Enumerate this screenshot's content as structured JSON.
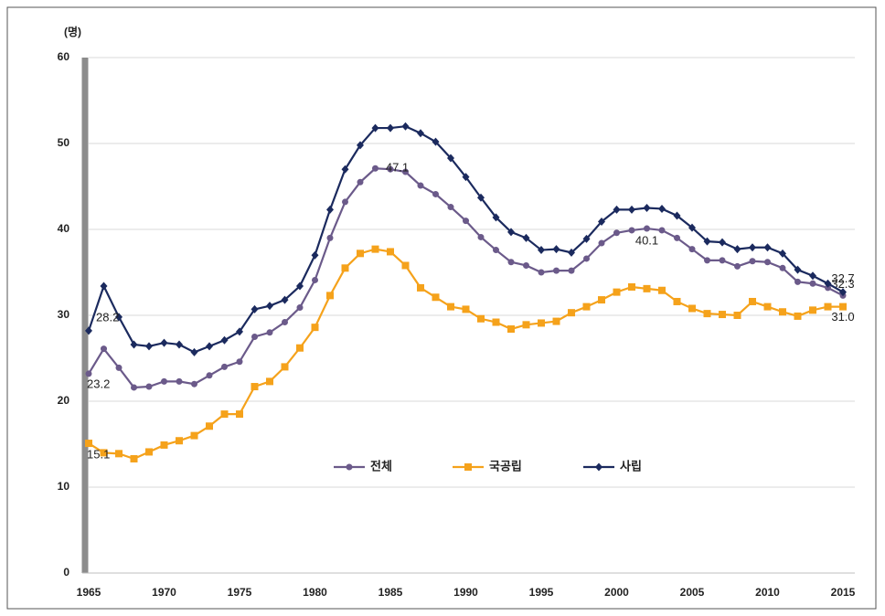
{
  "chart_data": {
    "type": "line",
    "y_label": "(명)",
    "x": [
      1965,
      1966,
      1967,
      1968,
      1969,
      1970,
      1971,
      1972,
      1973,
      1974,
      1975,
      1976,
      1977,
      1978,
      1979,
      1980,
      1981,
      1982,
      1983,
      1984,
      1985,
      1986,
      1987,
      1988,
      1989,
      1990,
      1991,
      1992,
      1993,
      1994,
      1995,
      1996,
      1997,
      1998,
      1999,
      2000,
      2001,
      2002,
      2003,
      2004,
      2005,
      2006,
      2007,
      2008,
      2009,
      2010,
      2011,
      2012,
      2013,
      2014,
      2015
    ],
    "xlim": [
      1965,
      2015
    ],
    "xticks": [
      1965,
      1970,
      1975,
      1980,
      1985,
      1990,
      1995,
      2000,
      2005,
      2010,
      2015
    ],
    "ylim": [
      0,
      60
    ],
    "yticks": [
      0,
      10,
      20,
      30,
      40,
      50,
      60
    ],
    "grid": true,
    "legend": "center",
    "series": [
      {
        "name": "전체",
        "color": "#6b5a8a",
        "marker": "circle",
        "values": [
          23.2,
          26.1,
          23.9,
          21.6,
          21.7,
          22.3,
          22.3,
          22.0,
          23.0,
          24.0,
          24.6,
          27.5,
          28.0,
          29.2,
          30.9,
          34.1,
          39.0,
          43.2,
          45.5,
          47.1,
          47.0,
          46.7,
          45.1,
          44.1,
          42.6,
          41.0,
          39.1,
          37.6,
          36.2,
          35.8,
          35.0,
          35.2,
          35.2,
          36.6,
          38.4,
          39.6,
          39.9,
          40.1,
          39.9,
          39.0,
          37.7,
          36.4,
          36.4,
          35.7,
          36.3,
          36.2,
          35.5,
          33.9,
          33.7,
          33.2,
          32.3
        ],
        "value_labels": [
          "23.2",
          null,
          null,
          null,
          null,
          null,
          null,
          null,
          null,
          null,
          null,
          null,
          null,
          null,
          null,
          null,
          null,
          null,
          null,
          "47.1",
          null,
          null,
          null,
          null,
          null,
          null,
          null,
          null,
          null,
          null,
          null,
          null,
          null,
          null,
          null,
          null,
          null,
          "40.1",
          null,
          null,
          null,
          null,
          null,
          null,
          null,
          null,
          null,
          null,
          null,
          null,
          "32.3"
        ]
      },
      {
        "name": "국공립",
        "color": "#f5a21b",
        "marker": "square",
        "values": [
          15.1,
          14.0,
          13.9,
          13.3,
          14.1,
          14.9,
          15.4,
          16.0,
          17.1,
          18.5,
          18.5,
          21.7,
          22.3,
          24.0,
          26.2,
          28.6,
          32.3,
          35.5,
          37.2,
          37.7,
          37.4,
          35.8,
          33.2,
          32.1,
          31.0,
          30.7,
          29.6,
          29.2,
          28.4,
          28.9,
          29.1,
          29.3,
          30.3,
          31.0,
          31.8,
          32.7,
          33.3,
          33.1,
          32.9,
          31.6,
          30.8,
          30.2,
          30.1,
          30.0,
          31.6,
          31.0,
          30.4,
          29.9,
          30.6,
          31.0,
          31.0
        ],
        "value_labels": [
          "15.1",
          null,
          null,
          null,
          null,
          null,
          null,
          null,
          null,
          null,
          null,
          null,
          null,
          null,
          null,
          null,
          null,
          null,
          null,
          null,
          null,
          null,
          null,
          null,
          null,
          null,
          null,
          null,
          null,
          null,
          null,
          null,
          null,
          null,
          null,
          null,
          null,
          null,
          null,
          null,
          null,
          null,
          null,
          null,
          null,
          null,
          null,
          null,
          null,
          null,
          "31.0"
        ]
      },
      {
        "name": "사립",
        "color": "#1b2a5e",
        "marker": "diamond",
        "values": [
          28.2,
          33.4,
          29.8,
          26.6,
          26.4,
          26.8,
          26.6,
          25.7,
          26.4,
          27.1,
          28.1,
          30.7,
          31.1,
          31.8,
          33.4,
          37.0,
          42.3,
          47.0,
          49.8,
          51.8,
          51.8,
          52.0,
          51.2,
          50.2,
          48.3,
          46.1,
          43.7,
          41.4,
          39.7,
          39.0,
          37.6,
          37.7,
          37.3,
          38.9,
          40.9,
          42.3,
          42.3,
          42.5,
          42.4,
          41.6,
          40.2,
          38.6,
          38.5,
          37.7,
          37.9,
          37.9,
          37.2,
          35.3,
          34.6,
          33.7,
          32.7
        ],
        "value_labels": [
          "28.2",
          null,
          null,
          null,
          null,
          null,
          null,
          null,
          null,
          null,
          null,
          null,
          null,
          null,
          null,
          null,
          null,
          null,
          null,
          null,
          null,
          null,
          null,
          null,
          null,
          null,
          null,
          null,
          null,
          null,
          null,
          null,
          null,
          null,
          null,
          null,
          null,
          null,
          null,
          null,
          null,
          null,
          null,
          null,
          null,
          null,
          null,
          null,
          null,
          null,
          "32.7"
        ]
      }
    ]
  }
}
